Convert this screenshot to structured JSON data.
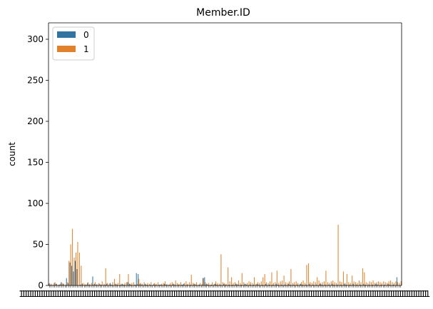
{
  "chart_data": {
    "type": "bar",
    "title": "Member.ID",
    "xlabel": "",
    "ylabel": "count",
    "ylim": [
      0,
      320
    ],
    "yticks": [
      0,
      50,
      100,
      150,
      200,
      250,
      300
    ],
    "grid": false,
    "legend": {
      "placement": "top-left",
      "entries": [
        {
          "name": "0",
          "color": "#3274a1"
        },
        {
          "name": "1",
          "color": "#e1812c"
        }
      ]
    },
    "x_tick_labels_note": "1",
    "series": [
      {
        "name": "0",
        "color": "#3274a1",
        "values": [
          2,
          1,
          0,
          3,
          2,
          0,
          1,
          4,
          2,
          0,
          9,
          3,
          28,
          24,
          17,
          30,
          20,
          0,
          1,
          2,
          0,
          1,
          3,
          1,
          0,
          11,
          2,
          1,
          0,
          2,
          1,
          0,
          1,
          2,
          0,
          3,
          1,
          0,
          2,
          1,
          0,
          1,
          2,
          1,
          0,
          4,
          2,
          1,
          0,
          1,
          15,
          14,
          2,
          1,
          0,
          2,
          1,
          0,
          1,
          0,
          2,
          1,
          0,
          1,
          1,
          0,
          2,
          1,
          0,
          1,
          0,
          2,
          1,
          0,
          1,
          0,
          1,
          2,
          0,
          1,
          0,
          1,
          0,
          2,
          1,
          0,
          1,
          0,
          9,
          10,
          2,
          1,
          0,
          1,
          0,
          2,
          1,
          0,
          1,
          0,
          2,
          1,
          0,
          1,
          0,
          1,
          0,
          2,
          1,
          0,
          1,
          0,
          2,
          1,
          0,
          1,
          0,
          1,
          0,
          2,
          1,
          0,
          1,
          0,
          2,
          0,
          1,
          0,
          1,
          0,
          2,
          1,
          0,
          1,
          0,
          1,
          0,
          2,
          1,
          0,
          1,
          0,
          1,
          0,
          2,
          1,
          0,
          1,
          0,
          2,
          0,
          1,
          0,
          1,
          0,
          2,
          1,
          0,
          1,
          0,
          1,
          0,
          2,
          1,
          0,
          1,
          0,
          1,
          0,
          2,
          1,
          0,
          1,
          0,
          2,
          0,
          1,
          0,
          1,
          0,
          2,
          1,
          0,
          1,
          0,
          1,
          0,
          2,
          1,
          0,
          1,
          0,
          1,
          0,
          2,
          1,
          0,
          1,
          0,
          10
        ]
      },
      {
        "name": "1",
        "color": "#e1812c",
        "values": [
          3,
          2,
          1,
          4,
          2,
          1,
          2,
          3,
          2,
          1,
          4,
          30,
          50,
          69,
          34,
          40,
          53,
          40,
          24,
          3,
          2,
          1,
          4,
          2,
          3,
          1,
          4,
          2,
          3,
          1,
          5,
          2,
          21,
          3,
          2,
          1,
          4,
          8,
          2,
          3,
          14,
          2,
          1,
          3,
          4,
          14,
          2,
          3,
          4,
          1,
          2,
          8,
          3,
          2,
          4,
          1,
          3,
          2,
          4,
          1,
          3,
          2,
          4,
          1,
          2,
          3,
          5,
          2,
          1,
          3,
          4,
          2,
          6,
          3,
          2,
          4,
          1,
          3,
          5,
          2,
          4,
          13,
          3,
          2,
          4,
          1,
          3,
          2,
          9,
          4,
          2,
          3,
          1,
          4,
          2,
          5,
          3,
          2,
          38,
          4,
          3,
          2,
          22,
          5,
          10,
          3,
          4,
          2,
          6,
          3,
          15,
          4,
          2,
          3,
          5,
          4,
          3,
          10,
          2,
          4,
          3,
          5,
          10,
          14,
          4,
          3,
          5,
          16,
          3,
          4,
          18,
          3,
          5,
          6,
          12,
          4,
          3,
          5,
          20,
          3,
          4,
          5,
          3,
          2,
          4,
          6,
          3,
          25,
          27,
          4,
          3,
          5,
          4,
          10,
          6,
          3,
          4,
          5,
          18,
          4,
          3,
          5,
          6,
          4,
          3,
          74,
          5,
          4,
          17,
          3,
          14,
          4,
          3,
          12,
          5,
          4,
          3,
          6,
          4,
          21,
          16,
          4,
          3,
          5,
          4,
          6,
          3,
          4,
          5,
          4,
          3,
          5,
          4,
          3,
          5,
          6,
          4,
          3,
          5,
          4,
          3,
          5
        ]
      }
    ]
  }
}
